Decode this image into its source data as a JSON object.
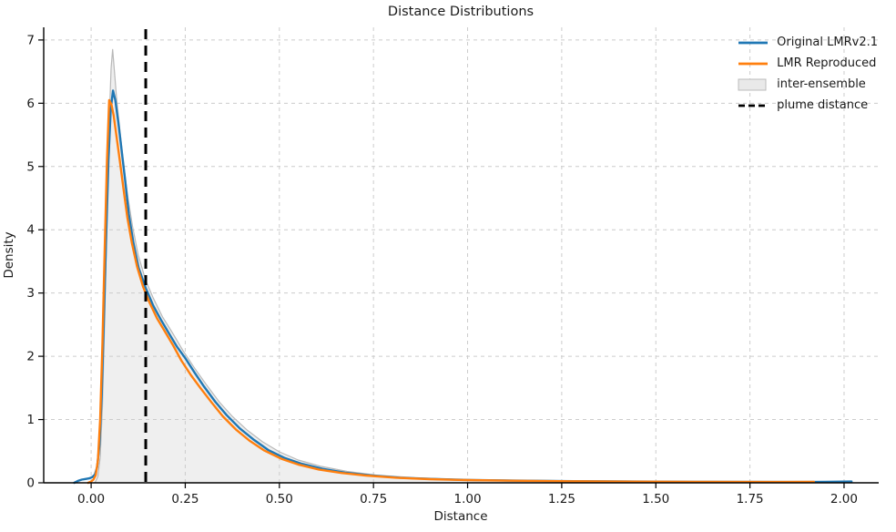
{
  "chart_data": {
    "type": "line",
    "title": "Distance Distributions",
    "xlabel": "Distance",
    "ylabel": "Density",
    "xlim": [
      -0.126,
      2.092
    ],
    "ylim": [
      0,
      7.2
    ],
    "grid": true,
    "grid_color": "#cccccc",
    "background": "#ffffff",
    "xticks": {
      "values": [
        0,
        0.25,
        0.5,
        0.75,
        1.0,
        1.25,
        1.5,
        1.75,
        2.0
      ],
      "labels": [
        "0.00",
        "0.25",
        "0.50",
        "0.75",
        "1.00",
        "1.25",
        "1.50",
        "1.75",
        "2.00"
      ]
    },
    "yticks": {
      "values": [
        0,
        1,
        2,
        3,
        4,
        5,
        6,
        7
      ],
      "labels": [
        "0",
        "1",
        "2",
        "3",
        "4",
        "5",
        "6",
        "7"
      ]
    },
    "series": [
      {
        "name": "Original LMRv2.1",
        "color": "#1f77b4",
        "x": [
          -0.045,
          -0.035,
          -0.025,
          -0.015,
          -0.005,
          0.003,
          0.01,
          0.016,
          0.022,
          0.028,
          0.034,
          0.04,
          0.046,
          0.052,
          0.058,
          0.064,
          0.072,
          0.08,
          0.09,
          0.1,
          0.112,
          0.126,
          0.145,
          0.165,
          0.185,
          0.205,
          0.228,
          0.25,
          0.275,
          0.3,
          0.33,
          0.36,
          0.395,
          0.43,
          0.47,
          0.515,
          0.56,
          0.615,
          0.675,
          0.74,
          0.82,
          0.91,
          1.01,
          1.13,
          1.28,
          1.45,
          1.65,
          1.85,
          1.95,
          2.02
        ],
        "y": [
          0.0,
          0.03,
          0.05,
          0.06,
          0.07,
          0.09,
          0.13,
          0.25,
          0.6,
          1.4,
          2.6,
          3.9,
          5.1,
          5.9,
          6.2,
          6.05,
          5.7,
          5.3,
          4.8,
          4.25,
          3.8,
          3.4,
          3.08,
          2.8,
          2.58,
          2.38,
          2.15,
          1.97,
          1.74,
          1.52,
          1.28,
          1.07,
          0.86,
          0.69,
          0.52,
          0.39,
          0.3,
          0.22,
          0.16,
          0.12,
          0.08,
          0.06,
          0.045,
          0.034,
          0.026,
          0.02,
          0.015,
          0.013,
          0.015,
          0.02
        ]
      },
      {
        "name": "LMR Reproduced",
        "color": "#ff7f0e",
        "x": [
          -0.008,
          0.0,
          0.006,
          0.012,
          0.018,
          0.024,
          0.03,
          0.036,
          0.042,
          0.048,
          0.054,
          0.06,
          0.068,
          0.076,
          0.086,
          0.096,
          0.108,
          0.122,
          0.138,
          0.155,
          0.175,
          0.195,
          0.218,
          0.24,
          0.265,
          0.29,
          0.32,
          0.35,
          0.385,
          0.42,
          0.46,
          0.505,
          0.55,
          0.605,
          0.665,
          0.73,
          0.81,
          0.9,
          1.0,
          1.12,
          1.27,
          1.44,
          1.64,
          1.82,
          1.92
        ],
        "y": [
          0.0,
          0.02,
          0.05,
          0.12,
          0.35,
          1.0,
          2.2,
          3.7,
          5.1,
          6.05,
          5.98,
          5.8,
          5.45,
          5.1,
          4.65,
          4.2,
          3.8,
          3.42,
          3.1,
          2.85,
          2.6,
          2.4,
          2.17,
          1.93,
          1.7,
          1.5,
          1.27,
          1.05,
          0.84,
          0.67,
          0.51,
          0.38,
          0.29,
          0.21,
          0.155,
          0.115,
          0.08,
          0.058,
          0.043,
          0.033,
          0.025,
          0.019,
          0.015,
          0.013,
          0.014
        ]
      }
    ],
    "band": {
      "name": "inter-ensemble",
      "fill": "#e9e9e9",
      "fill_opacity": 0.75,
      "edge": "#b8b8b8",
      "x": [
        0.01,
        0.018,
        0.024,
        0.03,
        0.036,
        0.042,
        0.048,
        0.053,
        0.057,
        0.062,
        0.068,
        0.076,
        0.086,
        0.098,
        0.11,
        0.125,
        0.145,
        0.165,
        0.19,
        0.215,
        0.245,
        0.275,
        0.305,
        0.34,
        0.375,
        0.415,
        0.455,
        0.5,
        0.55,
        0.61,
        0.68,
        0.76,
        0.86,
        0.98,
        1.12,
        1.3,
        1.5,
        1.75,
        1.95,
        2.02
      ],
      "y": [
        0.0,
        0.1,
        0.4,
        1.2,
        2.6,
        4.2,
        5.7,
        6.55,
        6.85,
        6.5,
        6.05,
        5.6,
        5.05,
        4.5,
        4.05,
        3.6,
        3.2,
        2.92,
        2.62,
        2.38,
        2.08,
        1.81,
        1.56,
        1.28,
        1.05,
        0.83,
        0.65,
        0.49,
        0.36,
        0.26,
        0.18,
        0.12,
        0.08,
        0.05,
        0.035,
        0.025,
        0.018,
        0.013,
        0.011,
        0.01
      ]
    },
    "vline": {
      "name": "plume distance",
      "x": 0.145,
      "color": "#000000",
      "style": "dashed",
      "width": 3
    },
    "legend": {
      "position": "upper right",
      "frame": false,
      "items": [
        {
          "label": "Original LMRv2.1",
          "type": "line",
          "color": "#1f77b4"
        },
        {
          "label": "LMR Reproduced",
          "type": "line",
          "color": "#ff7f0e"
        },
        {
          "label": "inter-ensemble",
          "type": "patch",
          "color": "#e9e9e9",
          "edge": "#bbbbbb"
        },
        {
          "label": "plume distance",
          "type": "dashed-line",
          "color": "#000000"
        }
      ]
    }
  }
}
